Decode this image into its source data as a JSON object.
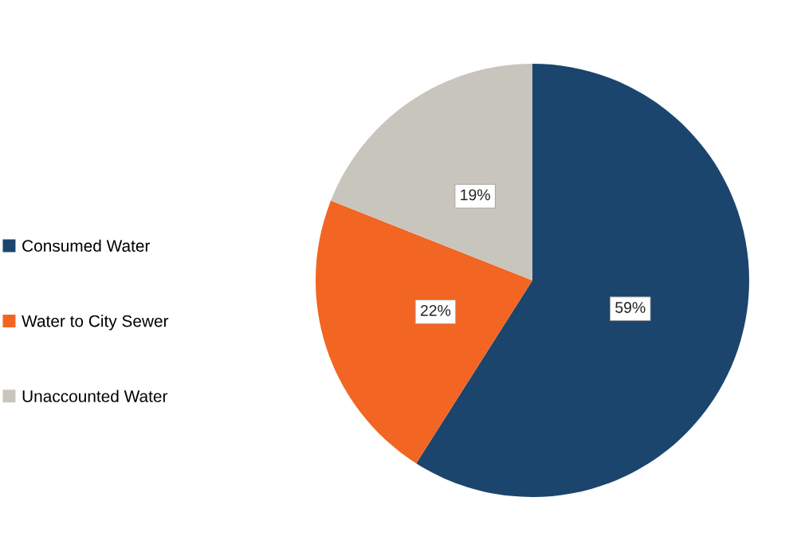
{
  "chart_data": {
    "type": "pie",
    "categories": [
      "Consumed Water",
      "Water to City Sewer",
      "Unaccounted Water"
    ],
    "values": [
      59,
      22,
      19
    ],
    "colors": [
      "#1b456d",
      "#f26522",
      "#c8c5bd"
    ],
    "value_labels": [
      "59%",
      "22%",
      "19%"
    ],
    "legend": "left"
  }
}
